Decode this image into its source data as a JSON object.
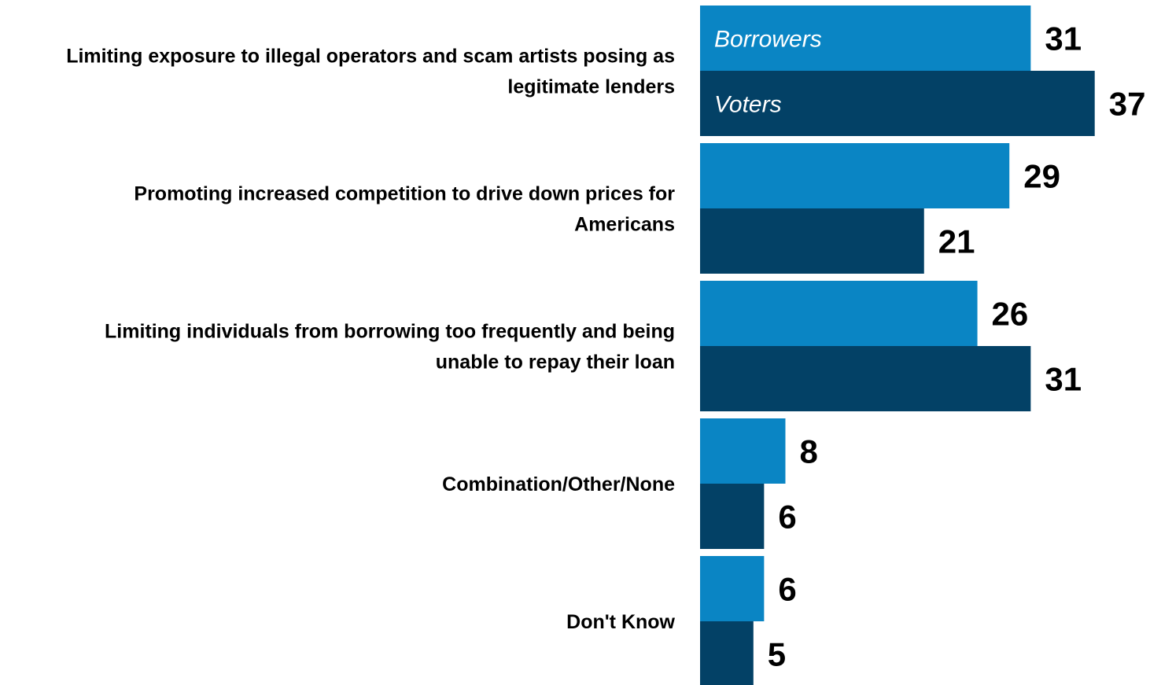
{
  "chart_data": {
    "type": "bar",
    "orientation": "horizontal",
    "title": "",
    "xlabel": "",
    "ylabel": "",
    "xlim": [
      0,
      37
    ],
    "grid": false,
    "categories": [
      [
        "Limiting exposure to illegal operators and scam artists posing as",
        "legitimate lenders"
      ],
      [
        "Promoting increased competition to drive down prices for",
        "Americans"
      ],
      [
        "Limiting individuals from borrowing too frequently and being",
        "unable to repay their loan"
      ],
      [
        "Combination/Other/None"
      ],
      [
        "Don't Know"
      ]
    ],
    "series": [
      {
        "name": "Borrowers",
        "color": "#0A85C4",
        "values": [
          31,
          29,
          26,
          8,
          6
        ]
      },
      {
        "name": "Voters",
        "color": "#034166",
        "values": [
          37,
          21,
          31,
          6,
          5
        ]
      }
    ]
  }
}
